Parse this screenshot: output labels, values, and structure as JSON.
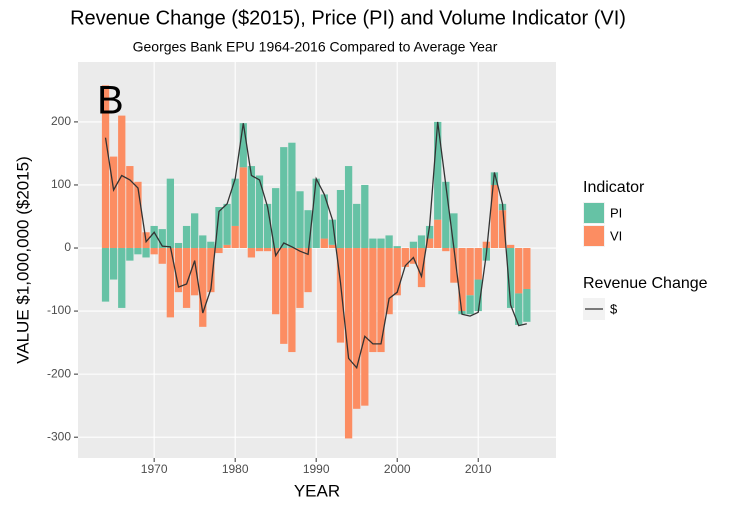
{
  "chart_data": {
    "type": "bar",
    "title": "Revenue Change ($2015), Price (PI) and Volume Indicator (VI)",
    "subtitle": "Georges Bank EPU 1964-2016 Compared to Average Year",
    "annotation": "B",
    "x_label": "YEAR",
    "y_label": "VALUE $1,000,000 ($2015)",
    "x": [
      1964,
      1965,
      1966,
      1967,
      1968,
      1969,
      1970,
      1971,
      1972,
      1973,
      1974,
      1975,
      1976,
      1977,
      1978,
      1979,
      1980,
      1981,
      1982,
      1983,
      1984,
      1985,
      1986,
      1987,
      1988,
      1989,
      1990,
      1991,
      1992,
      1993,
      1994,
      1995,
      1996,
      1997,
      1998,
      1999,
      2000,
      2001,
      2002,
      2003,
      2004,
      2005,
      2006,
      2007,
      2008,
      2009,
      2010,
      2011,
      2012,
      2013,
      2014,
      2015,
      2016
    ],
    "series": [
      {
        "name": "PI",
        "mark": "bar",
        "color": "#66c2a5",
        "values": [
          -85,
          -50,
          -95,
          -20,
          -10,
          -15,
          35,
          30,
          110,
          8,
          35,
          55,
          20,
          10,
          65,
          65,
          75,
          70,
          130,
          115,
          70,
          95,
          160,
          167,
          90,
          60,
          110,
          70,
          40,
          92,
          130,
          70,
          100,
          15,
          15,
          20,
          3,
          0,
          10,
          20,
          20,
          155,
          105,
          55,
          -5,
          -30,
          -50,
          -20,
          20,
          10,
          -95,
          -50,
          -52
        ]
      },
      {
        "name": "VI",
        "mark": "bar",
        "color": "#fc8d62",
        "values": [
          258,
          145,
          210,
          130,
          105,
          25,
          -10,
          -25,
          -110,
          -70,
          -95,
          -75,
          -125,
          -70,
          -8,
          5,
          35,
          128,
          -15,
          -5,
          -5,
          -105,
          -152,
          -165,
          -95,
          -70,
          0,
          15,
          5,
          -150,
          -302,
          -255,
          -250,
          -165,
          -165,
          -105,
          -75,
          -30,
          -25,
          -62,
          15,
          45,
          -5,
          -55,
          -100,
          -75,
          -50,
          10,
          100,
          60,
          5,
          -72,
          -65
        ]
      },
      {
        "name": "$",
        "mark": "line",
        "color": "#333333",
        "values": [
          175,
          92,
          115,
          108,
          95,
          10,
          25,
          3,
          2,
          -62,
          -57,
          -20,
          -103,
          -65,
          58,
          70,
          110,
          198,
          115,
          108,
          65,
          -12,
          8,
          2,
          -5,
          -10,
          110,
          85,
          45,
          -55,
          -175,
          -190,
          -140,
          -152,
          -152,
          -80,
          -70,
          -28,
          -15,
          -45,
          35,
          200,
          100,
          0,
          -105,
          -108,
          -102,
          -10,
          120,
          70,
          -90,
          -123,
          -120
        ]
      }
    ],
    "legend_titles": {
      "bar": "Indicator",
      "line": "Revenue Change"
    },
    "xlim": [
      1960.6,
      2019.6
    ],
    "xticks": [
      1970,
      1980,
      1990,
      2000,
      2010
    ],
    "ylim": [
      -333,
      295
    ],
    "yticks": [
      -300,
      -200,
      -100,
      0,
      100,
      200
    ],
    "grid": true
  }
}
